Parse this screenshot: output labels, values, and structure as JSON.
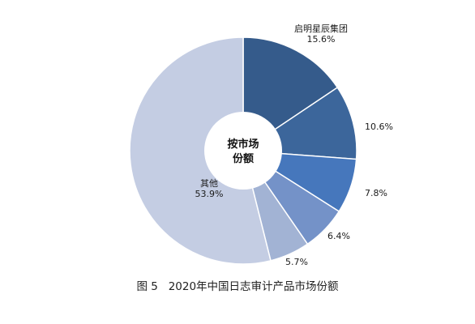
{
  "chart_data": {
    "type": "pie",
    "donut": true,
    "center_label": [
      "按市场",
      "份额"
    ],
    "slices": [
      {
        "label": "启明星辰集团",
        "value": 15.6,
        "value_text": "15.6%",
        "color": "#355b8b"
      },
      {
        "label": "",
        "value": 10.6,
        "value_text": "10.6%",
        "color": "#3c669b"
      },
      {
        "label": "",
        "value": 7.8,
        "value_text": "7.8%",
        "color": "#4677bc"
      },
      {
        "label": "",
        "value": 6.4,
        "value_text": "6.4%",
        "color": "#7492c8"
      },
      {
        "label": "",
        "value": 5.7,
        "value_text": "5.7%",
        "color": "#a2b3d4"
      },
      {
        "label": "其他",
        "value": 53.9,
        "value_text": "53.9%",
        "color": "#c4cde3"
      }
    ]
  },
  "caption": "图 5   2020年中国日志审计产品市场份额"
}
